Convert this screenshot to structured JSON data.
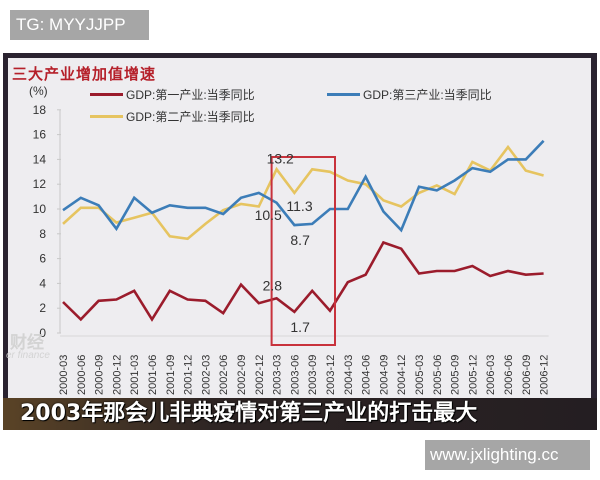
{
  "top_badge": {
    "text": "TG: MYYJJPP"
  },
  "bottom_badge": {
    "text": "www.jxlighting.cc"
  },
  "subtitle": "2003年那会儿非典疫情对第三产业的打击最大",
  "watermark": {
    "main": "财经",
    "sub": "er finance"
  },
  "chart_data": {
    "type": "line",
    "title": "三大产业增加值增速",
    "ylabel": "(%)",
    "xlabel": "",
    "ylim": [
      0,
      18
    ],
    "yticks": [
      0,
      2,
      4,
      6,
      8,
      10,
      12,
      14,
      16,
      18
    ],
    "grid": false,
    "legend_position": "top",
    "categories": [
      "2000-03",
      "2000-06",
      "2000-09",
      "2000-12",
      "2001-03",
      "2001-06",
      "2001-09",
      "2001-12",
      "2002-03",
      "2002-06",
      "2002-09",
      "2002-12",
      "2003-03",
      "2003-06",
      "2003-09",
      "2003-12",
      "2004-03",
      "2004-06",
      "2004-09",
      "2004-12",
      "2005-03",
      "2005-06",
      "2005-09",
      "2005-12",
      "2006-03",
      "2006-06",
      "2006-09",
      "2006-12"
    ],
    "series": [
      {
        "name": "GDP:第一产业:当季同比",
        "color": "#9b1c2c",
        "values": [
          2.5,
          1.1,
          2.6,
          2.7,
          3.4,
          1.1,
          3.4,
          2.7,
          2.6,
          1.6,
          3.9,
          2.4,
          2.8,
          1.7,
          3.4,
          1.8,
          4.1,
          4.7,
          7.3,
          6.8,
          4.8,
          5.0,
          5.0,
          5.4,
          4.6,
          5.0,
          4.7,
          4.8
        ]
      },
      {
        "name": "GDP:第二产业:当季同比",
        "color": "#e6c460",
        "values": [
          8.8,
          10.1,
          10.1,
          8.9,
          9.3,
          9.7,
          7.8,
          7.6,
          8.8,
          9.9,
          10.4,
          10.2,
          13.2,
          11.3,
          13.2,
          13.0,
          12.3,
          12.0,
          10.7,
          10.2,
          11.3,
          11.9,
          11.2,
          13.8,
          13.1,
          15.0,
          13.1,
          12.7
        ]
      },
      {
        "name": "GDP:第三产业:当季同比",
        "color": "#3c7db8",
        "values": [
          9.9,
          10.9,
          10.3,
          8.4,
          10.9,
          9.7,
          10.3,
          10.1,
          10.1,
          9.6,
          10.9,
          11.3,
          10.5,
          8.7,
          8.8,
          10.0,
          10.0,
          12.6,
          9.8,
          8.3,
          11.8,
          11.5,
          12.3,
          13.3,
          13.0,
          14.0,
          14.0,
          15.5
        ]
      }
    ],
    "annotations": [
      {
        "text": "13.2",
        "series": "GDP:第二产业:当季同比",
        "x": "2003-03"
      },
      {
        "text": "11.3",
        "series": "GDP:第二产业:当季同比",
        "x": "2003-06"
      },
      {
        "text": "10.5",
        "series": "GDP:第三产业:当季同比",
        "x": "2003-03"
      },
      {
        "text": "8.7",
        "series": "GDP:第三产业:当季同比",
        "x": "2003-06"
      },
      {
        "text": "2.8",
        "series": "GDP:第一产业:当季同比",
        "x": "2003-03"
      },
      {
        "text": "1.7",
        "series": "GDP:第一产业:当季同比",
        "x": "2003-06"
      }
    ],
    "highlight_box": {
      "from": "2003-03",
      "to": "2003-12",
      "color": "#c8323c"
    }
  }
}
